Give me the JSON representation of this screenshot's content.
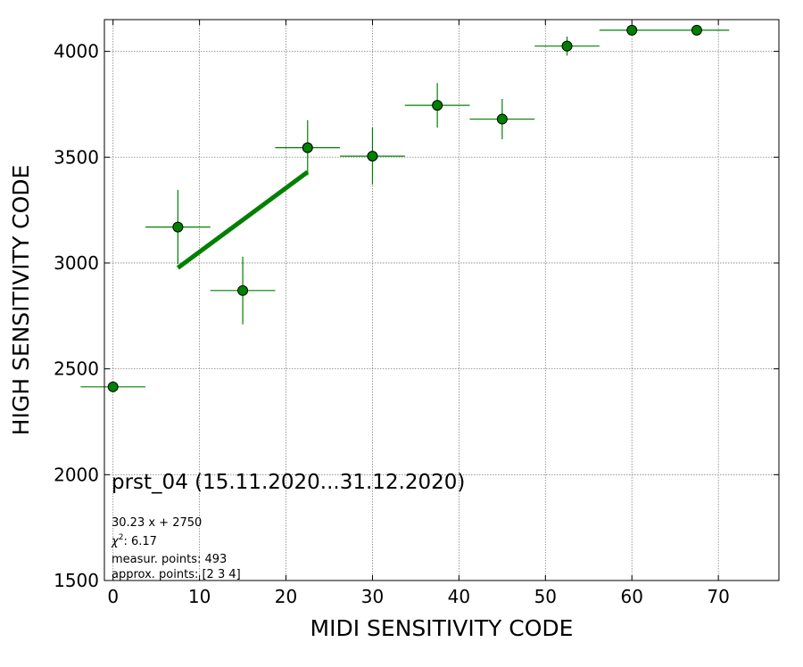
{
  "chart_data": {
    "type": "scatter",
    "title": "",
    "xlabel": "MIDI SENSITIVITY CODE",
    "ylabel": "HIGH SENSITIVITY CODE",
    "xlim": [
      -1,
      77
    ],
    "ylim": [
      1500,
      4150
    ],
    "xticks": [
      0,
      10,
      20,
      30,
      40,
      50,
      60,
      70
    ],
    "yticks": [
      1500,
      2000,
      2500,
      3000,
      3500,
      4000
    ],
    "grid": true,
    "marker_color": "#008000",
    "marker_edge_color": "#000000",
    "errorbar_color": "#008000",
    "fit_color": "#008000",
    "points": [
      {
        "x": 0.0,
        "y": 2415,
        "xerr": 3.75,
        "yerr": 20
      },
      {
        "x": 7.5,
        "y": 3170,
        "xerr": 3.75,
        "yerr": 175
      },
      {
        "x": 15.0,
        "y": 2870,
        "xerr": 3.75,
        "yerr": 160
      },
      {
        "x": 22.5,
        "y": 3545,
        "xerr": 3.75,
        "yerr": 130
      },
      {
        "x": 30.0,
        "y": 3505,
        "xerr": 3.75,
        "yerr": 135
      },
      {
        "x": 37.5,
        "y": 3745,
        "xerr": 3.75,
        "yerr": 105
      },
      {
        "x": 45.0,
        "y": 3680,
        "xerr": 3.75,
        "yerr": 95
      },
      {
        "x": 52.5,
        "y": 4025,
        "xerr": 3.75,
        "yerr": 45
      },
      {
        "x": 60.0,
        "y": 4100,
        "xerr": 3.75,
        "yerr": 15
      },
      {
        "x": 67.5,
        "y": 4100,
        "xerr": 3.75,
        "yerr": 15
      }
    ],
    "fit_line": {
      "x": [
        7.5,
        22.5
      ],
      "y": [
        2977,
        3430
      ]
    },
    "annotation": {
      "title": "prst_04 (15.11.2020...31.12.2020)",
      "equation": "30.23 x + 2750",
      "chi2_label": "χ",
      "chi2_sup": "2",
      "chi2_value": ": 6.17",
      "measur_points": "measur. points: 493",
      "approx_points": "approx. points: [2 3 4]"
    }
  }
}
